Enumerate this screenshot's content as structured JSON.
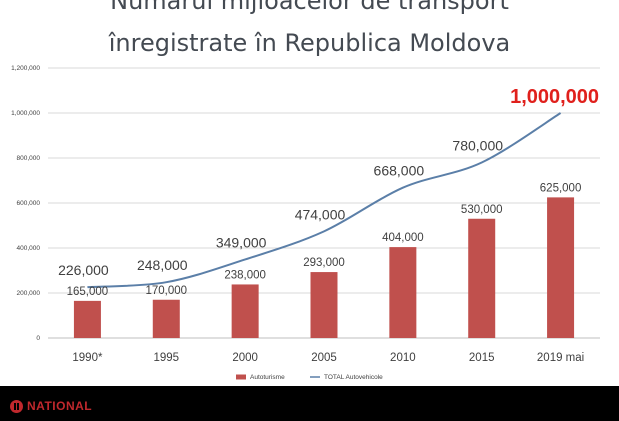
{
  "title_line1": "Numărul mijloacelor de transport",
  "title_line2": "înregistrate în Republica Moldova",
  "chart_data": {
    "type": "bar",
    "categories": [
      "1990*",
      "1995",
      "2000",
      "2005",
      "2010",
      "2015",
      "2019 mai"
    ],
    "series": [
      {
        "name": "Autoturisme",
        "type": "bar",
        "values": [
          165000,
          170000,
          238000,
          293000,
          404000,
          530000,
          625000
        ],
        "labels": [
          "165,000",
          "170,000",
          "238,000",
          "293,000",
          "404,000",
          "530,000",
          "625,000"
        ]
      },
      {
        "name": "TOTAL Autovehicole",
        "type": "line",
        "values": [
          226000,
          248000,
          349000,
          474000,
          668000,
          780000,
          1000000
        ],
        "labels": [
          "226,000",
          "248,000",
          "349,000",
          "474,000",
          "668,000",
          "780,000",
          "1,000,000"
        ]
      }
    ],
    "ylim": [
      0,
      1200000
    ],
    "yticks": [
      0,
      200000,
      400000,
      600000,
      800000,
      1000000,
      1200000
    ],
    "ytick_labels": [
      "0",
      "200,000",
      "400,000",
      "600,000",
      "800,000",
      "1,000,000",
      "1,200,000"
    ],
    "grid": true,
    "legend": "bottom",
    "colors": {
      "bar": "#c0504d",
      "line": "#5b7fa8",
      "highlight": "#e0201c",
      "grid": "#d9d9d9",
      "text": "#404040"
    }
  },
  "logo_text": "NATIONAL"
}
